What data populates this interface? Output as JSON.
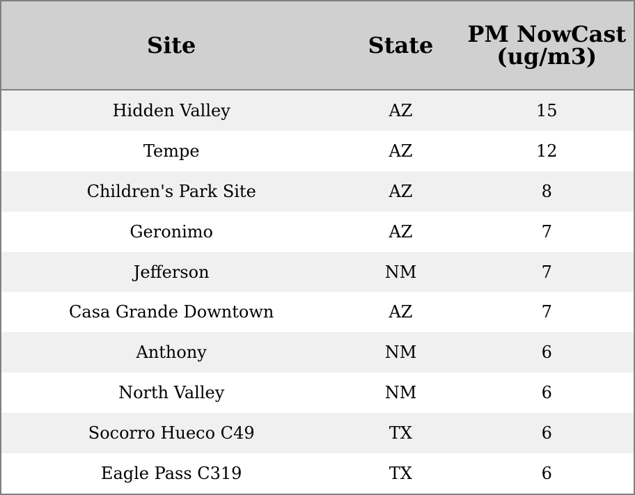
{
  "table": {
    "headers": [
      "Site",
      "State",
      "PM NowCast (ug/m3)"
    ],
    "rows": [
      [
        "Hidden Valley",
        "AZ",
        "15"
      ],
      [
        "Tempe",
        "AZ",
        "12"
      ],
      [
        "Children's Park Site",
        "AZ",
        "8"
      ],
      [
        "Geronimo",
        "AZ",
        "7"
      ],
      [
        "Jefferson",
        "NM",
        "7"
      ],
      [
        "Casa Grande Downtown",
        "AZ",
        "7"
      ],
      [
        "Anthony",
        "NM",
        "6"
      ],
      [
        "North Valley",
        "NM",
        "6"
      ],
      [
        "Socorro Hueco C49",
        "TX",
        "6"
      ],
      [
        "Eagle Pass C319",
        "TX",
        "6"
      ]
    ]
  },
  "colors": {
    "header_bg": "#d0d0d0",
    "stripe_bg": "#f0f0f0",
    "border": "#808080"
  }
}
